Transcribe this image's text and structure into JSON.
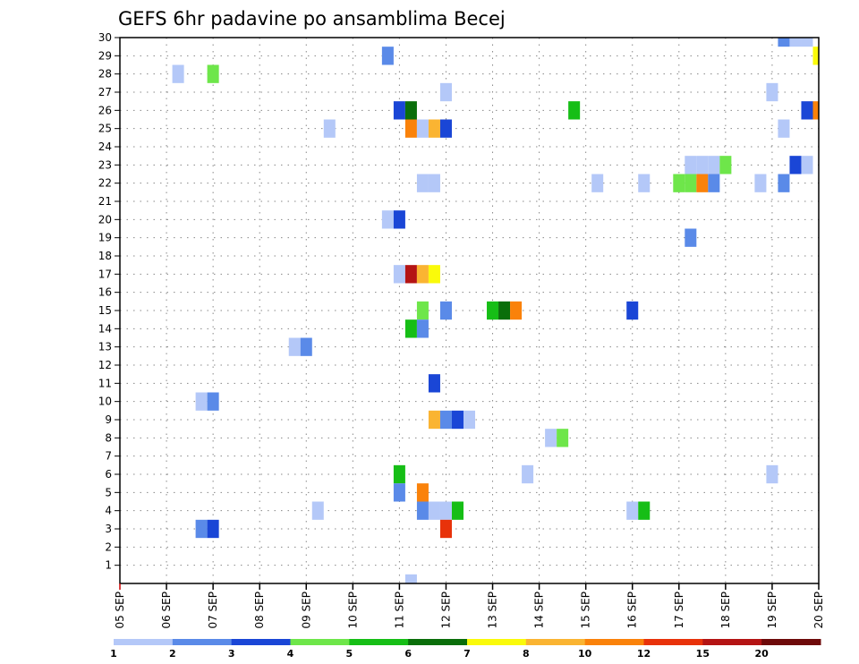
{
  "chart_data": {
    "type": "heatmap",
    "title": "GEFS 6hr padavine po ansamblima Becej",
    "xlabel": "",
    "ylabel": "",
    "x_tick_labels": [
      "05 SEP",
      "06 SEP",
      "07 SEP",
      "08 SEP",
      "09 SEP",
      "10 SEP",
      "11 SEP",
      "12 SEP",
      "13 SEP",
      "14 SEP",
      "15 SEP",
      "16 SEP",
      "17 SEP",
      "18 SEP",
      "19 SEP",
      "20 SEP"
    ],
    "y_tick_labels": [
      "1",
      "2",
      "3",
      "4",
      "5",
      "6",
      "7",
      "8",
      "9",
      "10",
      "11",
      "12",
      "13",
      "14",
      "15",
      "16",
      "17",
      "18",
      "19",
      "20",
      "21",
      "22",
      "23",
      "24",
      "25",
      "26",
      "27",
      "28",
      "29",
      "30"
    ],
    "x_unit": "6-hour step from 05 SEP 00z",
    "xlim_steps": [
      0,
      60
    ],
    "ylim_members": [
      0,
      30
    ],
    "grid": true,
    "colorbar": {
      "position": "bottom",
      "labels": [
        "1",
        "2",
        "3",
        "4",
        "5",
        "6",
        "7",
        "8",
        "10",
        "12",
        "15",
        "20"
      ],
      "colors": [
        "#b4c8f8",
        "#5a8ae8",
        "#1a46d6",
        "#6ee64a",
        "#16be16",
        "#0a6e0a",
        "#fafa0a",
        "#fab432",
        "#fa820a",
        "#e8320a",
        "#b41414",
        "#6e0a0a"
      ]
    },
    "cells": [
      {
        "step": 57,
        "member": 30,
        "level": 2
      },
      {
        "step": 58,
        "member": 30,
        "level": 1
      },
      {
        "step": 59,
        "member": 30,
        "level": 1
      },
      {
        "step": 23,
        "member": 29,
        "level": 2
      },
      {
        "step": 60,
        "member": 29,
        "level": 7
      },
      {
        "step": 5,
        "member": 28,
        "level": 1
      },
      {
        "step": 8,
        "member": 28,
        "level": 4
      },
      {
        "step": 28,
        "member": 27,
        "level": 1
      },
      {
        "step": 56,
        "member": 27,
        "level": 1
      },
      {
        "step": 24,
        "member": 26,
        "level": 3
      },
      {
        "step": 25,
        "member": 26,
        "level": 6
      },
      {
        "step": 39,
        "member": 26,
        "level": 5
      },
      {
        "step": 59,
        "member": 26,
        "level": 3
      },
      {
        "step": 60,
        "member": 26,
        "level": 9
      },
      {
        "step": 18,
        "member": 25,
        "level": 1
      },
      {
        "step": 25,
        "member": 25,
        "level": 9
      },
      {
        "step": 26,
        "member": 25,
        "level": 1
      },
      {
        "step": 27,
        "member": 25,
        "level": 8
      },
      {
        "step": 28,
        "member": 25,
        "level": 3
      },
      {
        "step": 57,
        "member": 25,
        "level": 1
      },
      {
        "step": 49,
        "member": 23,
        "level": 1
      },
      {
        "step": 50,
        "member": 23,
        "level": 1
      },
      {
        "step": 51,
        "member": 23,
        "level": 1
      },
      {
        "step": 52,
        "member": 23,
        "level": 4
      },
      {
        "step": 58,
        "member": 23,
        "level": 3
      },
      {
        "step": 59,
        "member": 23,
        "level": 1
      },
      {
        "step": 26,
        "member": 22,
        "level": 1
      },
      {
        "step": 27,
        "member": 22,
        "level": 1
      },
      {
        "step": 41,
        "member": 22,
        "level": 1
      },
      {
        "step": 45,
        "member": 22,
        "level": 1
      },
      {
        "step": 48,
        "member": 22,
        "level": 4
      },
      {
        "step": 49,
        "member": 22,
        "level": 4
      },
      {
        "step": 50,
        "member": 22,
        "level": 9
      },
      {
        "step": 51,
        "member": 22,
        "level": 2
      },
      {
        "step": 55,
        "member": 22,
        "level": 1
      },
      {
        "step": 57,
        "member": 22,
        "level": 2
      },
      {
        "step": 23,
        "member": 20,
        "level": 1
      },
      {
        "step": 24,
        "member": 20,
        "level": 3
      },
      {
        "step": 49,
        "member": 19,
        "level": 2
      },
      {
        "step": 24,
        "member": 17,
        "level": 1
      },
      {
        "step": 25,
        "member": 17,
        "level": 11
      },
      {
        "step": 26,
        "member": 17,
        "level": 8
      },
      {
        "step": 27,
        "member": 17,
        "level": 7
      },
      {
        "step": 26,
        "member": 15,
        "level": 4
      },
      {
        "step": 28,
        "member": 15,
        "level": 2
      },
      {
        "step": 32,
        "member": 15,
        "level": 5
      },
      {
        "step": 33,
        "member": 15,
        "level": 6
      },
      {
        "step": 34,
        "member": 15,
        "level": 9
      },
      {
        "step": 44,
        "member": 15,
        "level": 3
      },
      {
        "step": 25,
        "member": 14,
        "level": 5
      },
      {
        "step": 26,
        "member": 14,
        "level": 2
      },
      {
        "step": 15,
        "member": 13,
        "level": 1
      },
      {
        "step": 16,
        "member": 13,
        "level": 2
      },
      {
        "step": 27,
        "member": 11,
        "level": 3
      },
      {
        "step": 7,
        "member": 10,
        "level": 1
      },
      {
        "step": 8,
        "member": 10,
        "level": 2
      },
      {
        "step": 27,
        "member": 9,
        "level": 8
      },
      {
        "step": 28,
        "member": 9,
        "level": 2
      },
      {
        "step": 29,
        "member": 9,
        "level": 3
      },
      {
        "step": 30,
        "member": 9,
        "level": 1
      },
      {
        "step": 37,
        "member": 8,
        "level": 1
      },
      {
        "step": 38,
        "member": 8,
        "level": 4
      },
      {
        "step": 24,
        "member": 6,
        "level": 5
      },
      {
        "step": 35,
        "member": 6,
        "level": 1
      },
      {
        "step": 56,
        "member": 6,
        "level": 1
      },
      {
        "step": 24,
        "member": 5,
        "level": 2
      },
      {
        "step": 26,
        "member": 5,
        "level": 9
      },
      {
        "step": 17,
        "member": 4,
        "level": 1
      },
      {
        "step": 26,
        "member": 4,
        "level": 2
      },
      {
        "step": 27,
        "member": 4,
        "level": 1
      },
      {
        "step": 28,
        "member": 4,
        "level": 1
      },
      {
        "step": 29,
        "member": 4,
        "level": 5
      },
      {
        "step": 44,
        "member": 4,
        "level": 1
      },
      {
        "step": 45,
        "member": 4,
        "level": 5
      },
      {
        "step": 7,
        "member": 3,
        "level": 2
      },
      {
        "step": 8,
        "member": 3,
        "level": 3
      },
      {
        "step": 28,
        "member": 3,
        "level": 10
      },
      {
        "step": 25,
        "member": 0,
        "level": 1
      }
    ]
  }
}
